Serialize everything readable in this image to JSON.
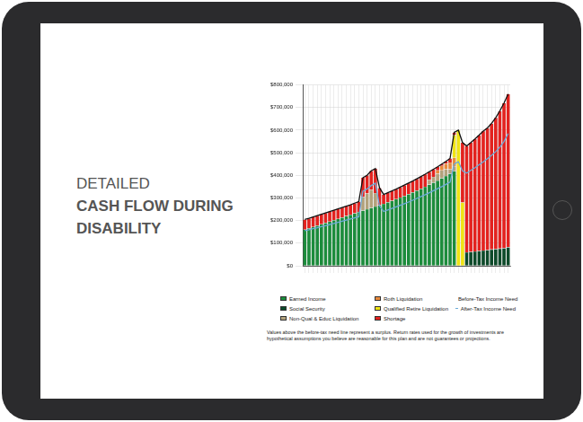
{
  "page": {
    "heading": [
      "DETAILED",
      "CASH FLOW DURING",
      "DISABILITY"
    ]
  },
  "chart_data": {
    "type": "bar",
    "stacked": true,
    "grid": true,
    "tick_labels": "y",
    "footnote": "Values above the before-tax need line represent a surplus. Return rates used for the growth of investments are hypothetical assumptions you believe are reasonable for this plan and are not guarantees or projections.",
    "categories": [
      null,
      null,
      null,
      null,
      null,
      null,
      null,
      null,
      null,
      null,
      null,
      null,
      null,
      null,
      null,
      null,
      null,
      null,
      null,
      null,
      null,
      null,
      null,
      null,
      null,
      null,
      null,
      null,
      null,
      null,
      null,
      null,
      null,
      null,
      null,
      null,
      null,
      null,
      null,
      null,
      null,
      null,
      null,
      null,
      null,
      null,
      null,
      null,
      null,
      null
    ],
    "ylim": [
      0,
      800000
    ],
    "yticks": [
      {
        "value": 0,
        "label": "$0"
      },
      {
        "value": 100000,
        "label": "$100,000"
      },
      {
        "value": 200000,
        "label": "$200,000"
      },
      {
        "value": 300000,
        "label": "$300,000"
      },
      {
        "value": 400000,
        "label": "$400,000"
      },
      {
        "value": 500000,
        "label": "$500,000"
      },
      {
        "value": 600000,
        "label": "$600,000"
      },
      {
        "value": 700000,
        "label": "$700,000"
      },
      {
        "value": 800000,
        "label": "$800,000"
      }
    ],
    "series": [
      {
        "name": "Earned Income",
        "color": "#1c8c3c",
        "type": "bar",
        "values": [
          160000,
          166000,
          172000,
          178000,
          184000,
          190000,
          196000,
          202000,
          208000,
          214000,
          220000,
          226000,
          232000,
          238000,
          244000,
          250000,
          256000,
          262000,
          268000,
          274000,
          281000,
          288000,
          295000,
          302000,
          309000,
          317000,
          325000,
          333000,
          341000,
          350000,
          359000,
          368000,
          377000,
          387000,
          397000,
          407000,
          418000,
          0,
          0,
          0,
          0,
          0,
          0,
          0,
          0,
          0,
          0,
          0,
          0,
          0
        ]
      },
      {
        "name": "Social Security",
        "color": "#0d4a2a",
        "type": "bar",
        "values": [
          0,
          0,
          0,
          0,
          0,
          0,
          0,
          0,
          0,
          0,
          0,
          0,
          0,
          0,
          0,
          0,
          0,
          0,
          0,
          0,
          0,
          0,
          0,
          0,
          0,
          0,
          0,
          0,
          0,
          0,
          0,
          0,
          0,
          0,
          0,
          0,
          0,
          0,
          0,
          60000,
          62000,
          64000,
          66000,
          68000,
          70000,
          72000,
          74000,
          76000,
          78000,
          82000
        ]
      },
      {
        "name": "Non-Qual & Educ Liquidation",
        "color": "#b3a27c",
        "type": "bar",
        "values": [
          0,
          0,
          0,
          0,
          0,
          0,
          0,
          0,
          0,
          0,
          0,
          0,
          0,
          0,
          60000,
          70000,
          80000,
          60000,
          0,
          0,
          0,
          0,
          0,
          0,
          0,
          0,
          0,
          0,
          0,
          0,
          20000,
          25000,
          30000,
          35000,
          30000,
          20000,
          20000,
          0,
          0,
          0,
          0,
          0,
          0,
          0,
          0,
          0,
          0,
          0,
          0,
          0
        ]
      },
      {
        "name": "Roth Liquidation",
        "color": "#e88a3c",
        "type": "bar",
        "values": [
          0,
          0,
          0,
          0,
          0,
          0,
          0,
          0,
          0,
          0,
          0,
          0,
          0,
          0,
          0,
          0,
          0,
          0,
          0,
          0,
          0,
          0,
          0,
          0,
          0,
          0,
          0,
          0,
          0,
          0,
          0,
          0,
          15000,
          20000,
          25000,
          30000,
          40000,
          0,
          0,
          0,
          0,
          0,
          0,
          0,
          0,
          0,
          0,
          0,
          0,
          0
        ]
      },
      {
        "name": "Qualified Retire Liquidation",
        "color": "#f0e414",
        "type": "bar",
        "values": [
          0,
          0,
          0,
          0,
          0,
          0,
          0,
          0,
          0,
          0,
          0,
          0,
          0,
          0,
          0,
          0,
          0,
          0,
          0,
          0,
          0,
          0,
          0,
          0,
          0,
          0,
          0,
          0,
          0,
          0,
          0,
          0,
          0,
          0,
          0,
          0,
          100000,
          600000,
          280000,
          0,
          0,
          0,
          0,
          0,
          0,
          0,
          0,
          0,
          0,
          0
        ]
      },
      {
        "name": "Shortage",
        "color": "#e3221f",
        "type": "bar",
        "values": [
          45000,
          44000,
          44000,
          44000,
          44000,
          44000,
          44000,
          44000,
          44000,
          44000,
          44000,
          44000,
          45000,
          46000,
          86000,
          80000,
          84000,
          108000,
          77000,
          41000,
          42000,
          43000,
          44000,
          46000,
          48000,
          49000,
          50000,
          52000,
          54000,
          55000,
          37000,
          34000,
          16000,
          8000,
          10000,
          18000,
          12000,
          0,
          265000,
          470000,
          483000,
          497000,
          512000,
          528000,
          540000,
          558000,
          581000,
          609000,
          642000,
          678000
        ]
      },
      {
        "name": "Before-Tax Income Need",
        "color": "#111111",
        "type": "line",
        "line_style": "solid",
        "values": [
          205000,
          210000,
          216000,
          222000,
          228000,
          234000,
          240000,
          246000,
          252000,
          258000,
          264000,
          270000,
          277000,
          284000,
          390000,
          400000,
          420000,
          430000,
          345000,
          315000,
          323000,
          331000,
          339000,
          348000,
          357000,
          366000,
          375000,
          385000,
          395000,
          405000,
          416000,
          427000,
          438000,
          450000,
          462000,
          475000,
          590000,
          600000,
          545000,
          530000,
          545000,
          561000,
          578000,
          596000,
          610000,
          630000,
          655000,
          685000,
          720000,
          760000
        ]
      },
      {
        "name": "After-Tax Income Need",
        "color": "#6aaad8",
        "type": "line",
        "line_style": "solid",
        "values": [
          155000,
          159000,
          164000,
          168000,
          173000,
          177000,
          182000,
          187000,
          192000,
          197000,
          202000,
          207000,
          212000,
          217000,
          330000,
          340000,
          355000,
          365000,
          265000,
          240000,
          247000,
          254000,
          261000,
          268000,
          275000,
          282000,
          290000,
          298000,
          306000,
          314000,
          323000,
          332000,
          341000,
          350000,
          360000,
          370000,
          450000,
          460000,
          420000,
          410000,
          422000,
          434000,
          447000,
          460000,
          474000,
          489000,
          505000,
          525000,
          550000,
          585000
        ]
      }
    ]
  }
}
